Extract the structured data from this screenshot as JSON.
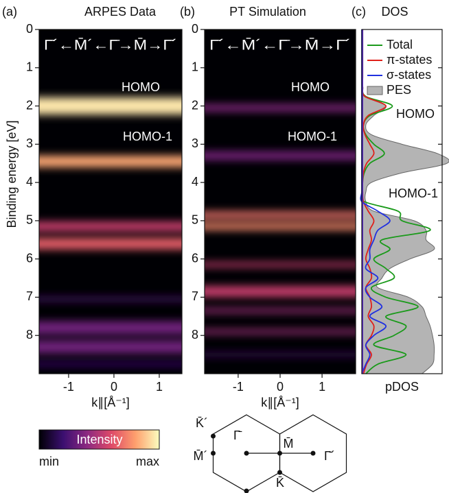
{
  "chart_data": [
    {
      "type": "heatmap",
      "panel_label": "(a)",
      "title": "ARPES Data",
      "path_label": "Γ̄´←M̄´←Γ̄→M̄→Γ̄´",
      "xlabel": "k∥[Å⁻¹]",
      "ylabel": "Binding energy [eV]",
      "xlim": [
        -1.65,
        1.5
      ],
      "xticks": [
        -1,
        0,
        1
      ],
      "ylim": [
        0,
        9
      ],
      "yticks": [
        0,
        1,
        2,
        3,
        4,
        5,
        6,
        7,
        8
      ],
      "y_inverted": true,
      "annotations": [
        "HOMO",
        "HOMO-1"
      ],
      "bands": [
        {
          "energy": 2.0,
          "width": 0.45,
          "intensity": 0.95
        },
        {
          "energy": 3.45,
          "width": 0.3,
          "intensity": 0.82
        },
        {
          "energy": 5.15,
          "width": 0.25,
          "intensity": 0.55
        },
        {
          "energy": 5.6,
          "width": 0.3,
          "intensity": 0.65
        },
        {
          "energy": 7.05,
          "width": 0.1,
          "intensity": 0.25
        },
        {
          "energy": 7.8,
          "width": 0.35,
          "intensity": 0.33
        },
        {
          "energy": 8.3,
          "width": 0.35,
          "intensity": 0.33
        },
        {
          "energy": 8.75,
          "width": 0.12,
          "intensity": 0.2
        }
      ]
    },
    {
      "type": "heatmap",
      "panel_label": "(b)",
      "title": "PT Simulation",
      "path_label": "Γ̄´←M̄´←Γ̄→M̄→Γ̄´",
      "xlabel": "k∥[Å⁻¹]",
      "xlim": [
        -1.8,
        1.8
      ],
      "xticks": [
        -1,
        0,
        1
      ],
      "ylim": [
        0,
        9
      ],
      "yticks": [
        0,
        1,
        2,
        3,
        4,
        5,
        6,
        7,
        8
      ],
      "y_inverted": true,
      "annotations": [
        "HOMO",
        "HOMO-1"
      ],
      "bands": [
        {
          "energy": 2.05,
          "width": 0.18,
          "intensity": 0.38
        },
        {
          "energy": 3.3,
          "width": 0.22,
          "intensity": 0.35
        },
        {
          "energy": 4.85,
          "width": 0.18,
          "intensity": 0.7
        },
        {
          "energy": 5.15,
          "width": 0.18,
          "intensity": 0.75
        },
        {
          "energy": 6.15,
          "width": 0.12,
          "intensity": 0.55
        },
        {
          "energy": 6.85,
          "width": 0.28,
          "intensity": 0.55
        },
        {
          "energy": 7.35,
          "width": 0.12,
          "intensity": 0.45
        },
        {
          "energy": 7.9,
          "width": 0.12,
          "intensity": 0.45
        },
        {
          "energy": 8.5,
          "width": 0.08,
          "intensity": 0.25
        }
      ]
    },
    {
      "type": "line",
      "panel_label": "(c)",
      "title": "DOS",
      "xlabel": "pDOS",
      "xlim": [
        0,
        1
      ],
      "ylim": [
        0,
        9
      ],
      "yticks": [
        1,
        2,
        3,
        4,
        5,
        6,
        7,
        8
      ],
      "y_inverted": true,
      "annotations": [
        "HOMO",
        "HOMO-1"
      ],
      "y": [
        0,
        0.25,
        0.5,
        0.75,
        1,
        1.25,
        1.5,
        1.75,
        2,
        2.25,
        2.5,
        2.75,
        3,
        3.25,
        3.5,
        3.75,
        4,
        4.25,
        4.5,
        4.75,
        5,
        5.25,
        5.5,
        5.75,
        6,
        6.25,
        6.5,
        6.75,
        7,
        7.25,
        7.5,
        7.75,
        8,
        8.25,
        8.5,
        8.75,
        9
      ],
      "series": [
        {
          "name": "PES",
          "color": "#b4b4b4",
          "fill": true,
          "values": [
            0,
            0,
            0,
            0,
            0,
            0,
            0,
            0.03,
            0.3,
            0.15,
            0.05,
            0.12,
            0.5,
            0.95,
            1.06,
            0.5,
            0.12,
            0.05,
            0.05,
            0.15,
            0.65,
            0.8,
            0.8,
            0.9,
            0.6,
            0.35,
            0.25,
            0.2,
            0.58,
            0.75,
            0.8,
            0.85,
            0.88,
            0.9,
            0.9,
            0.88,
            0.75
          ]
        },
        {
          "name": "Total",
          "color": "#1a9a1a",
          "values": [
            0.01,
            0.01,
            0.01,
            0.01,
            0.01,
            0.01,
            0.01,
            0.05,
            0.38,
            0.1,
            0.02,
            0.05,
            0.15,
            0.28,
            0.1,
            0.03,
            0.01,
            0.01,
            0.03,
            0.45,
            0.5,
            0.85,
            0.25,
            0.35,
            0.15,
            0.3,
            0.4,
            0.12,
            0.3,
            0.7,
            0.3,
            0.55,
            0.4,
            0.15,
            0.55,
            0.2,
            0.05
          ]
        },
        {
          "name": "π-states",
          "color": "#e0201a",
          "values": [
            0.01,
            0.01,
            0.01,
            0.01,
            0.01,
            0.01,
            0.01,
            0.04,
            0.3,
            0.08,
            0.02,
            0.04,
            0.1,
            0.15,
            0.06,
            0.02,
            0.01,
            0.01,
            0.02,
            0.08,
            0.15,
            0.1,
            0.12,
            0.08,
            0.05,
            0.1,
            0.12,
            0.05,
            0.1,
            0.12,
            0.08,
            0.15,
            0.12,
            0.05,
            0.12,
            0.06,
            0.02
          ]
        },
        {
          "name": "σ-states",
          "color": "#2030e0",
          "values": [
            0,
            0,
            0,
            0,
            0,
            0,
            0,
            0,
            0,
            0,
            0,
            0,
            0,
            0,
            0,
            0,
            0,
            0,
            0,
            0.2,
            0.35,
            0.2,
            0.15,
            0.1,
            0.1,
            0.05,
            0.2,
            0.05,
            0.1,
            0.25,
            0.1,
            0.3,
            0.15,
            0.05,
            0.1,
            0.05,
            0
          ]
        }
      ]
    }
  ],
  "colorbar": {
    "label": "Intensity",
    "min_label": "min",
    "max_label": "max",
    "colors": [
      "#000004",
      "#3b0f70",
      "#8c2981",
      "#de4968",
      "#fe9f6d",
      "#fcfdbf"
    ]
  },
  "diagram": {
    "labels": [
      "K̄´",
      "M̄´",
      "Γ̄",
      "M̄",
      "Γ̄´",
      "K̄"
    ]
  }
}
